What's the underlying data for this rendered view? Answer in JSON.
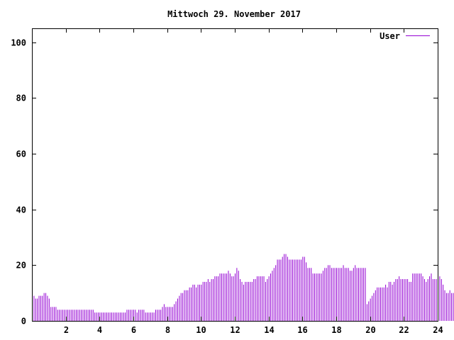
{
  "chart_data": {
    "type": "bar",
    "title": "Mittwoch 29. November 2017",
    "xlabel": "",
    "ylabel": "",
    "xlim": [
      0,
      24
    ],
    "ylim": [
      0,
      105
    ],
    "x_ticks": [
      {
        "value": 2,
        "label": "2"
      },
      {
        "value": 4,
        "label": "4"
      },
      {
        "value": 6,
        "label": "6"
      },
      {
        "value": 8,
        "label": "8"
      },
      {
        "value": 10,
        "label": "10"
      },
      {
        "value": 12,
        "label": "12"
      },
      {
        "value": 14,
        "label": "14"
      },
      {
        "value": 16,
        "label": "16"
      },
      {
        "value": 18,
        "label": "18"
      },
      {
        "value": 20,
        "label": "20"
      },
      {
        "value": 22,
        "label": "22"
      },
      {
        "value": 24,
        "label": "24"
      }
    ],
    "y_ticks": [
      {
        "value": 0,
        "label": "0"
      },
      {
        "value": 20,
        "label": "20"
      },
      {
        "value": 40,
        "label": "40"
      },
      {
        "value": 60,
        "label": "60"
      },
      {
        "value": 80,
        "label": "80"
      },
      {
        "value": 100,
        "label": "100"
      }
    ],
    "grid": false,
    "legend": {
      "position": "top-right"
    },
    "series": [
      {
        "name": "User",
        "color": "#9400d3",
        "x_step_hours": 0.1,
        "values": [
          11,
          9,
          8,
          8,
          9,
          9,
          9,
          10,
          10,
          9,
          8,
          5,
          5,
          5,
          5,
          4,
          4,
          4,
          4,
          4,
          4,
          4,
          4,
          4,
          4,
          4,
          4,
          4,
          4,
          4,
          4,
          4,
          4,
          4,
          4,
          4,
          4,
          3,
          3,
          3,
          3,
          3,
          3,
          3,
          3,
          3,
          3,
          3,
          3,
          3,
          3,
          3,
          3,
          3,
          3,
          3,
          4,
          4,
          4,
          4,
          4,
          4,
          3,
          4,
          4,
          4,
          4,
          3,
          3,
          3,
          3,
          3,
          3,
          4,
          4,
          4,
          4,
          5,
          6,
          5,
          5,
          5,
          5,
          5,
          6,
          7,
          8,
          9,
          10,
          10,
          11,
          11,
          11,
          12,
          12,
          13,
          13,
          12,
          13,
          13,
          13,
          14,
          14,
          14,
          15,
          14,
          15,
          15,
          16,
          16,
          16,
          17,
          17,
          17,
          17,
          17,
          18,
          17,
          16,
          16,
          17,
          19,
          18,
          15,
          14,
          13,
          14,
          14,
          14,
          14,
          14,
          15,
          15,
          16,
          16,
          16,
          16,
          16,
          14,
          15,
          16,
          17,
          18,
          19,
          20,
          22,
          22,
          22,
          23,
          24,
          24,
          23,
          22,
          22,
          22,
          22,
          22,
          22,
          22,
          22,
          23,
          23,
          21,
          19,
          19,
          19,
          17,
          17,
          17,
          17,
          17,
          17,
          18,
          19,
          19,
          20,
          20,
          19,
          19,
          19,
          19,
          19,
          19,
          19,
          20,
          19,
          19,
          19,
          18,
          18,
          19,
          20,
          19,
          19,
          19,
          19,
          19,
          19,
          6,
          7,
          8,
          9,
          10,
          11,
          12,
          12,
          12,
          12,
          12,
          13,
          12,
          14,
          14,
          13,
          14,
          15,
          15,
          16,
          15,
          15,
          15,
          15,
          15,
          14,
          14,
          17,
          17,
          17,
          17,
          17,
          17,
          16,
          15,
          14,
          15,
          16,
          17,
          15,
          15,
          15,
          16,
          16,
          15,
          13,
          11,
          10,
          10,
          11,
          10,
          10,
          10,
          10
        ]
      }
    ]
  }
}
